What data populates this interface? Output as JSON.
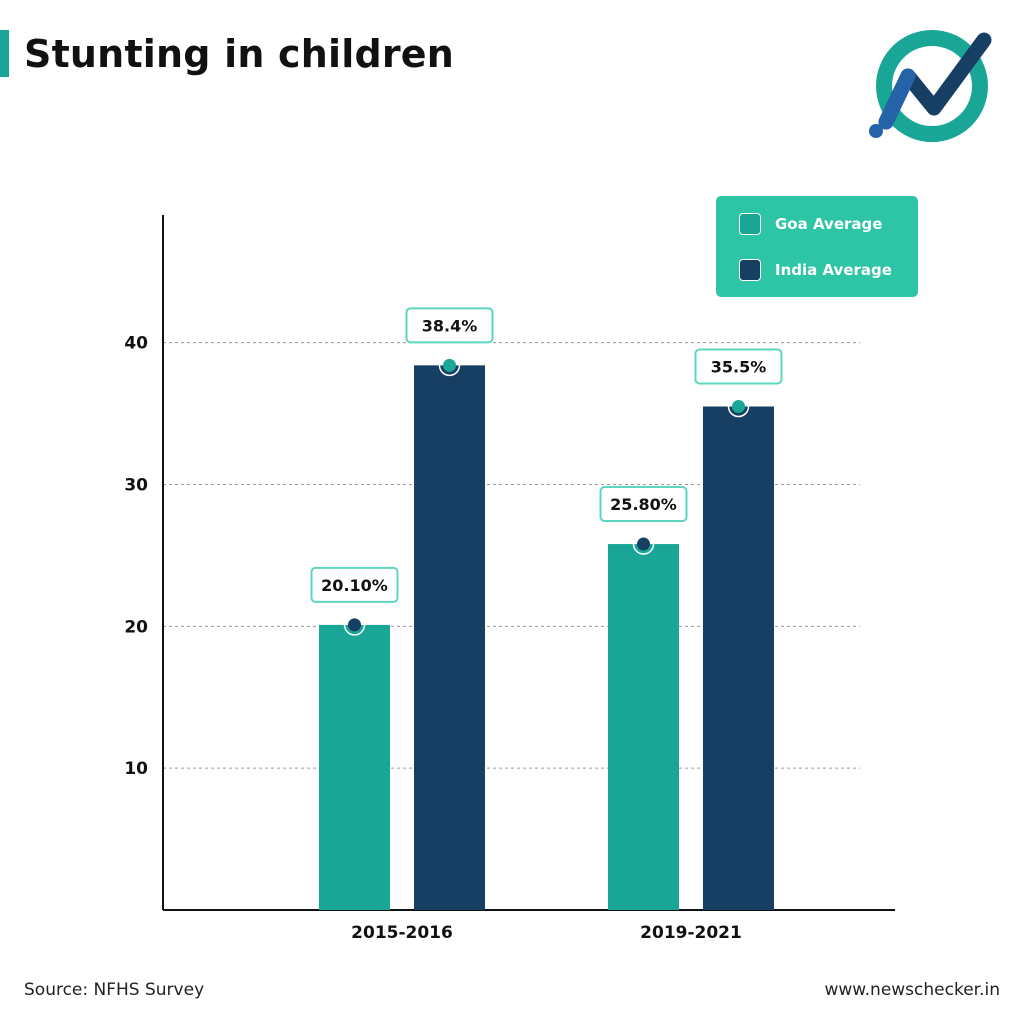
{
  "header": {
    "title": "Stunting in children"
  },
  "logo": {
    "icon": "newschecker-logo-icon",
    "ring_color": "#1aa697",
    "mark_color": "#173f63",
    "accent_color": "#2563a8"
  },
  "legend": {
    "items": [
      {
        "label": "Goa Average",
        "color": "#1aa697"
      },
      {
        "label": "India Average",
        "color": "#173f63"
      }
    ],
    "background": "#2ec4a6",
    "placement": "top-right"
  },
  "chart_data": {
    "type": "bar",
    "title": "Stunting in children",
    "xlabel": "",
    "ylabel": "",
    "categories": [
      "2015-2016",
      "2019-2021"
    ],
    "series": [
      {
        "name": "Goa Average",
        "values": [
          20.1,
          25.8
        ],
        "labels": [
          "20.10%",
          "25.80%"
        ],
        "color": "#1aa697"
      },
      {
        "name": "India Average",
        "values": [
          38.4,
          35.5
        ],
        "labels": [
          "38.4%",
          "35.5%"
        ],
        "color": "#173f63"
      }
    ],
    "yticks": [
      10,
      20,
      30,
      40
    ],
    "ylim": [
      0,
      49
    ],
    "grid": true
  },
  "footer": {
    "source": "Source: NFHS Survey",
    "website": "www.newschecker.in"
  }
}
